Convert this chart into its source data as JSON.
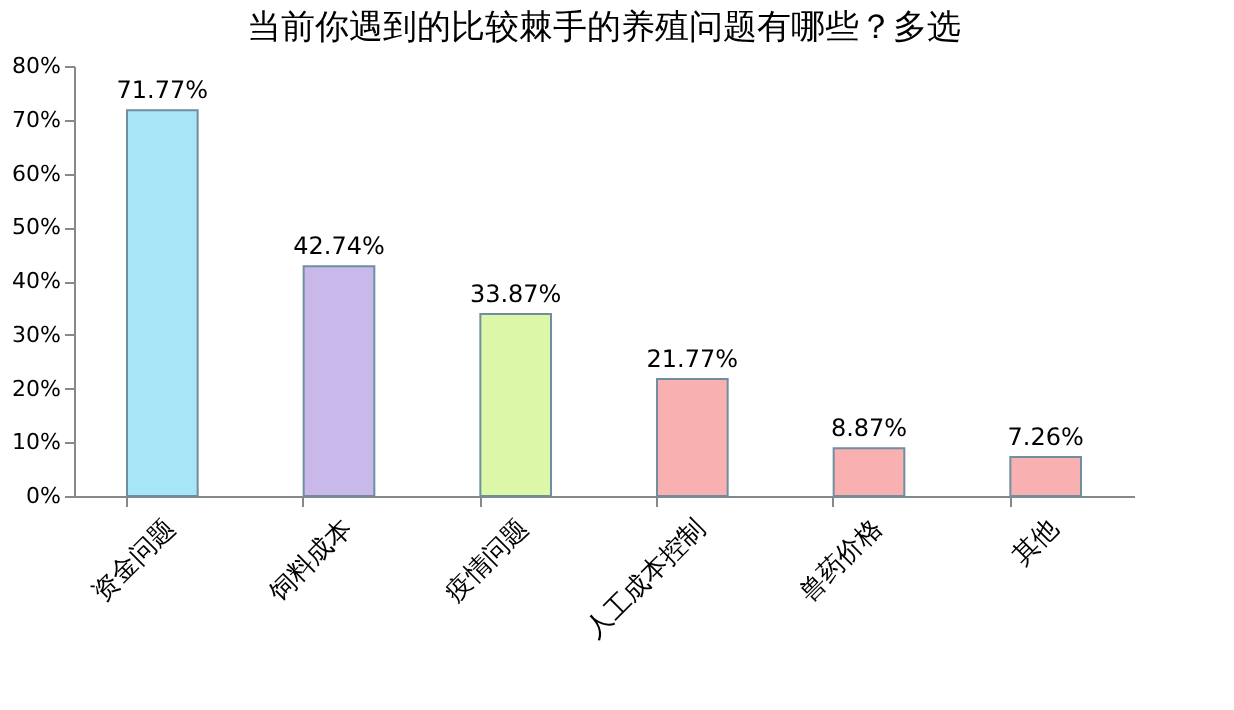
{
  "chart_data": {
    "type": "bar",
    "title": "当前你遇到的比较棘手的养殖问题有哪些？多选",
    "categories": [
      "资金问题",
      "饲料成本",
      "疫情问题",
      "人工成本控制",
      "兽药价格",
      "其他"
    ],
    "values": [
      71.77,
      42.74,
      33.87,
      21.77,
      8.87,
      7.26
    ],
    "colors": [
      "#a6e6f7",
      "#c9b8ea",
      "#ddf7a8",
      "#f9b0b0",
      "#f9b0b0",
      "#f9b0b0"
    ],
    "value_labels": [
      "71.77%",
      "42.74%",
      "33.87%",
      "21.77%",
      "8.87%",
      "7.26%"
    ],
    "ylim": [
      0,
      80
    ],
    "yticks": [
      {
        "value": 0,
        "label": "0%"
      },
      {
        "value": 10,
        "label": "10%"
      },
      {
        "value": 20,
        "label": "20%"
      },
      {
        "value": 30,
        "label": "30%"
      },
      {
        "value": 40,
        "label": "40%"
      },
      {
        "value": 50,
        "label": "50%"
      },
      {
        "value": 60,
        "label": "60%"
      },
      {
        "value": 70,
        "label": "70%"
      },
      {
        "value": 80,
        "label": "80%"
      }
    ],
    "grid": false,
    "legend": false
  }
}
